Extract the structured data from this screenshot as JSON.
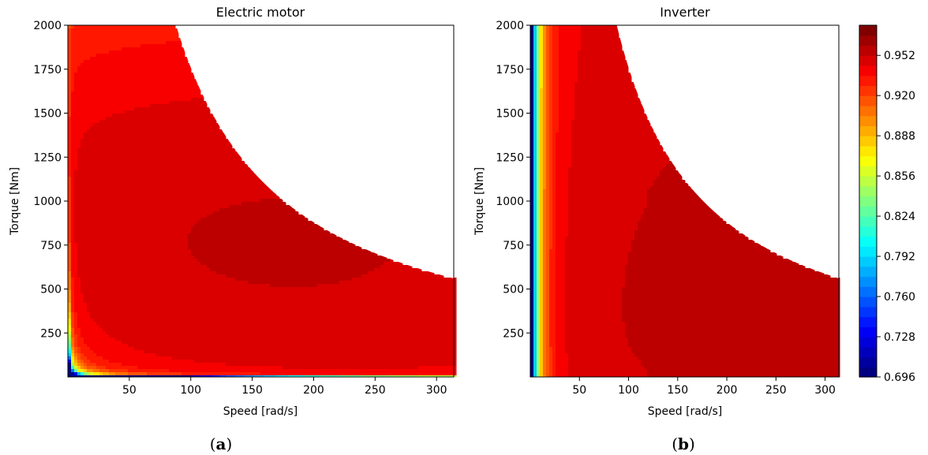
{
  "chart_data": [
    {
      "type": "heatmap",
      "subtype": "filled-contour",
      "title": "Electric motor",
      "xlabel": "Speed [rad/s]",
      "ylabel": "Torque [Nm]",
      "xlim": [
        0,
        314
      ],
      "ylim": [
        0,
        2000
      ],
      "xticks": [
        50,
        100,
        150,
        200,
        250,
        300
      ],
      "yticks": [
        250,
        500,
        750,
        1000,
        1250,
        1500,
        1750,
        2000
      ],
      "colormap": "jet",
      "value_range": [
        0.696,
        0.97
      ],
      "max_torque_envelope": {
        "speed": [
          88,
          100,
          125,
          150,
          200,
          250,
          314
        ],
        "torque": [
          2000,
          1760,
          1370,
          1150,
          870,
          700,
          570
        ]
      },
      "efficiency_peak_region": {
        "speed": [
          60,
          314
        ],
        "torque": [
          420,
          1370
        ],
        "value": 0.96
      }
    },
    {
      "type": "heatmap",
      "subtype": "filled-contour",
      "title": "Inverter",
      "xlabel": "Speed [rad/s]",
      "ylabel": "Torque [Nm]",
      "xlim": [
        0,
        314
      ],
      "ylim": [
        0,
        2000
      ],
      "xticks": [
        50,
        100,
        150,
        200,
        250,
        300
      ],
      "yticks": [
        250,
        500,
        750,
        1000,
        1250,
        1500,
        1750,
        2000
      ],
      "colormap": "jet",
      "value_range": [
        0.696,
        0.97
      ],
      "max_torque_envelope": {
        "speed": [
          88,
          100,
          125,
          150,
          200,
          250,
          314
        ],
        "torque": [
          2000,
          1760,
          1370,
          1150,
          870,
          700,
          570
        ]
      },
      "efficiency_peak_region": {
        "speed": [
          160,
          314
        ],
        "torque": [
          0,
          1050
        ],
        "value": 0.97
      }
    }
  ],
  "colorbar": {
    "ticks": [
      "0.696",
      "0.728",
      "0.760",
      "0.792",
      "0.824",
      "0.856",
      "0.888",
      "0.920",
      "0.952"
    ],
    "tick_values": [
      0.696,
      0.728,
      0.76,
      0.792,
      0.824,
      0.856,
      0.888,
      0.92,
      0.952
    ],
    "min": 0.696,
    "max": 0.976
  },
  "captions": [
    {
      "open": "(",
      "letter": "a",
      "close": ")"
    },
    {
      "open": "(",
      "letter": "b",
      "close": ")"
    }
  ]
}
